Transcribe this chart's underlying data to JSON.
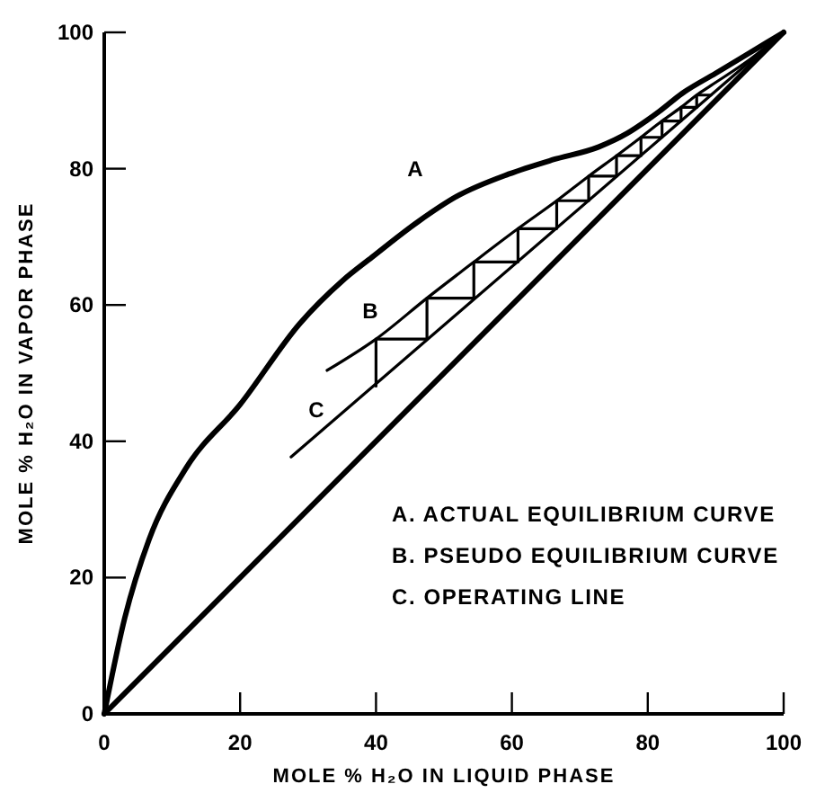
{
  "chart_data": {
    "type": "line",
    "xlabel": "MOLE % H₂O IN LIQUID PHASE",
    "ylabel": "MOLE % H₂O IN VAPOR PHASE",
    "xlim": [
      0,
      100
    ],
    "ylim": [
      0,
      100
    ],
    "xticks": [
      0,
      20,
      40,
      60,
      80,
      100
    ],
    "yticks": [
      0,
      20,
      40,
      60,
      80,
      100
    ],
    "grid": false,
    "marker": "none",
    "line_style": "solid",
    "series": [
      {
        "color": "#000000",
        "x": [
          0,
          3,
          6.6,
          12,
          20,
          28.8,
          35,
          39.4,
          46.3,
          52,
          59.5,
          66,
          72.8,
          77,
          79.9,
          81.7,
          85,
          90,
          95,
          100
        ],
        "values": [
          0,
          14,
          25.6,
          36,
          45.4,
          57.3,
          63.5,
          67,
          72.3,
          76,
          79.2,
          81.3,
          83.2,
          85.2,
          87.1,
          88.4,
          91,
          94,
          97,
          100
        ]
      },
      {
        "color": "#000000",
        "x": [
          0,
          100
        ],
        "values": [
          0,
          100
        ]
      },
      {
        "color": "#000000",
        "x": [
          32.8,
          40,
          47.5,
          54.4,
          60.9,
          66.6,
          71.3,
          75.4,
          79,
          82.1,
          84.9,
          87.2,
          89.3,
          95,
          100
        ],
        "values": [
          50.4,
          55,
          61,
          66.3,
          71.2,
          75.3,
          78.9,
          81.9,
          84.6,
          87,
          89,
          90.8,
          92.2,
          96,
          100
        ]
      },
      {
        "color": "#000000",
        "x": [
          27.5,
          100
        ],
        "values": [
          37.7,
          100
        ]
      },
      {
        "color": "#000000",
        "x": [
          40,
          40,
          47.5,
          47.5,
          54.4,
          54.4,
          60.9,
          60.9,
          66.6,
          66.6,
          71.3,
          71.3,
          75.4,
          75.4,
          79,
          79,
          82.1,
          82.1,
          84.9,
          84.9,
          87.2,
          87.2,
          89.3
        ],
        "values": [
          48.1,
          55,
          55,
          61,
          61,
          66.3,
          66.3,
          71.2,
          71.2,
          75.3,
          75.3,
          78.9,
          78.9,
          81.9,
          81.9,
          84.6,
          84.6,
          87,
          87,
          89,
          89,
          90.8,
          90.8
        ]
      }
    ],
    "annotations": [
      "A",
      "B",
      "C",
      "A. ACTUAL EQUILIBRIUM CURVE",
      "B. PSEUDO EQUILIBRIUM CURVE",
      "C. OPERATING LINE"
    ]
  }
}
